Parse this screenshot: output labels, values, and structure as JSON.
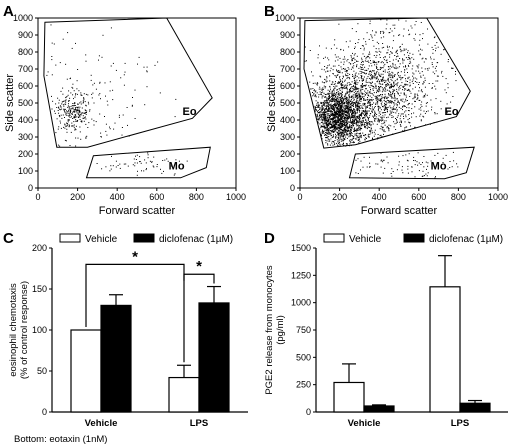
{
  "chart_data": [
    {
      "panel": "A",
      "type": "scatter",
      "xlabel": "Forward scatter",
      "ylabel": "Side scatter",
      "xlim": [
        0,
        1000
      ],
      "ylim": [
        0,
        1000
      ],
      "xticks": [
        "0",
        "200",
        "400",
        "600",
        "800",
        "1000"
      ],
      "yticks": [
        "0",
        "100",
        "200",
        "300",
        "400",
        "500",
        "600",
        "700",
        "800",
        "900",
        "1000"
      ],
      "gates": [
        {
          "label": "Eo",
          "points": [
            [
              35,
              975
            ],
            [
              650,
              1000
            ],
            [
              880,
              530
            ],
            [
              780,
              410
            ],
            [
              250,
              240
            ],
            [
              95,
              240
            ],
            [
              30,
              660
            ]
          ]
        },
        {
          "label": "Mo",
          "points": [
            [
              280,
              190
            ],
            [
              870,
              240
            ],
            [
              850,
              120
            ],
            [
              720,
              60
            ],
            [
              245,
              60
            ]
          ]
        }
      ],
      "clusters": [
        {
          "cx": 175,
          "cy": 450,
          "sx": 45,
          "sy": 60,
          "n": 230
        },
        {
          "cx": 260,
          "cy": 500,
          "sx": 170,
          "sy": 210,
          "n": 140
        },
        {
          "cx": 520,
          "cy": 150,
          "sx": 120,
          "sy": 35,
          "n": 60
        }
      ]
    },
    {
      "panel": "B",
      "type": "scatter",
      "xlabel": "Forward scatter",
      "ylabel": "Side scatter",
      "xlim": [
        0,
        1000
      ],
      "ylim": [
        0,
        1000
      ],
      "xticks": [
        "0",
        "200",
        "400",
        "600",
        "800",
        "1000"
      ],
      "yticks": [
        "0",
        "100",
        "200",
        "300",
        "400",
        "500",
        "600",
        "700",
        "800",
        "900",
        "1000"
      ],
      "gates": [
        {
          "label": "Eo",
          "points": [
            [
              25,
              985
            ],
            [
              640,
              1000
            ],
            [
              860,
              570
            ],
            [
              790,
              420
            ],
            [
              280,
              255
            ],
            [
              120,
              235
            ],
            [
              20,
              700
            ]
          ]
        },
        {
          "label": "Mo",
          "points": [
            [
              280,
              200
            ],
            [
              880,
              240
            ],
            [
              840,
              90
            ],
            [
              730,
              55
            ],
            [
              250,
              60
            ]
          ]
        }
      ],
      "clusters": [
        {
          "cx": 190,
          "cy": 420,
          "sx": 70,
          "sy": 80,
          "n": 1500
        },
        {
          "cx": 330,
          "cy": 540,
          "sx": 140,
          "sy": 150,
          "n": 1300
        },
        {
          "cx": 480,
          "cy": 650,
          "sx": 160,
          "sy": 170,
          "n": 500
        },
        {
          "cx": 520,
          "cy": 150,
          "sx": 140,
          "sy": 40,
          "n": 90
        }
      ]
    },
    {
      "panel": "C",
      "type": "bar",
      "ylabel_lines": [
        "eosinophil chemotaxis",
        "(% of control response)"
      ],
      "ylim": [
        0,
        200
      ],
      "yticks": [
        "0",
        "50",
        "100",
        "150",
        "200"
      ],
      "categories": [
        "Vehicle",
        "LPS"
      ],
      "series": [
        {
          "name": "Vehicle",
          "color": "#ffffff",
          "values": [
            100,
            42
          ],
          "errors": [
            0,
            15
          ]
        },
        {
          "name": "diclofenac (1µM)",
          "color": "#000000",
          "values": [
            130,
            133
          ],
          "errors": [
            13,
            20
          ]
        }
      ],
      "significance": [
        {
          "label": "*",
          "between": "Vehicle/Vehicle vs LPS/Vehicle"
        },
        {
          "label": "*",
          "between": "LPS/Vehicle vs LPS/diclofenac"
        }
      ],
      "footnote": "Bottom: eotaxin (1nM)"
    },
    {
      "panel": "D",
      "type": "bar",
      "ylabel_lines": [
        "PGE2 release from monocytes",
        "(pg/ml)"
      ],
      "ylim": [
        0,
        1500
      ],
      "yticks": [
        "0",
        "250",
        "500",
        "750",
        "1000",
        "1250",
        "1500"
      ],
      "categories": [
        "Vehicle",
        "LPS"
      ],
      "series": [
        {
          "name": "Vehicle",
          "color": "#ffffff",
          "values": [
            270,
            1145
          ],
          "errors": [
            170,
            285
          ]
        },
        {
          "name": "diclofenac (1µM)",
          "color": "#000000",
          "values": [
            55,
            80
          ],
          "errors": [
            10,
            25
          ]
        }
      ]
    }
  ]
}
